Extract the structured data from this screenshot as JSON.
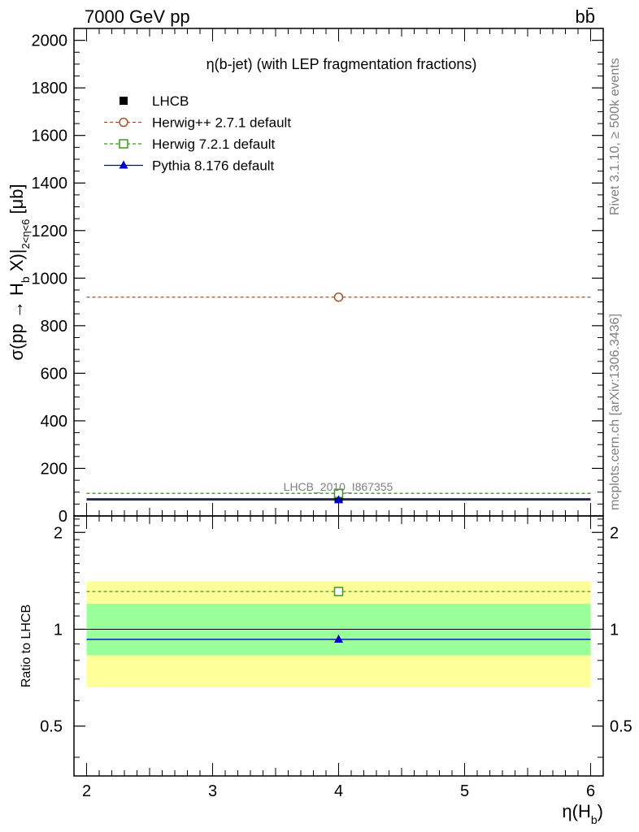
{
  "header": {
    "left": "7000 GeV pp",
    "right": "bb̄"
  },
  "side_labels": {
    "rivet": "Rivet 3.1.10, ≥ 500k events",
    "mcplots": "mcplots.cern.ch [arXiv:1306.3436]"
  },
  "chart_data": [
    {
      "type": "line",
      "panel": "main",
      "title": "η(b-jet) (with LEP fragmentation fractions)",
      "ylabel": "σ(pp → H_b X)|_{2<η<6} [μb]",
      "xlim": [
        1.9,
        6.1
      ],
      "ylim": [
        0,
        2050
      ],
      "yticks": [
        0,
        200,
        400,
        600,
        800,
        1000,
        1200,
        1400,
        1600,
        1800,
        2000
      ],
      "analysis_label": "LHCB_2010_I867355",
      "legend_position": "top-left",
      "series": [
        {
          "name": "LHCB",
          "style": "data",
          "color": "#000000",
          "marker": "filled-square",
          "x": [
            4
          ],
          "y": [
            72
          ],
          "xerr": [
            2
          ],
          "band": "none"
        },
        {
          "name": "Herwig++ 2.7.1 default",
          "style": "dashed",
          "color": "#a0522d",
          "marker": "open-circle",
          "x": [
            4
          ],
          "y": [
            920
          ],
          "xerr": [
            2
          ]
        },
        {
          "name": "Herwig 7.2.1 default",
          "style": "dashed",
          "color": "#3a9a1a",
          "marker": "open-square",
          "x": [
            4
          ],
          "y": [
            95
          ],
          "xerr": [
            2
          ]
        },
        {
          "name": "Pythia 8.176 default",
          "style": "solid",
          "color": "#0000cc",
          "marker": "filled-triangle",
          "x": [
            4
          ],
          "y": [
            67
          ],
          "xerr": [
            2
          ]
        }
      ]
    },
    {
      "type": "line",
      "panel": "ratio",
      "ylabel": "Ratio to LHCB",
      "xlabel": "η(H_b)",
      "xlim": [
        1.9,
        6.1
      ],
      "ylim": [
        0.35,
        2.25
      ],
      "yticks": [
        0.5,
        1,
        2
      ],
      "xticks": [
        2,
        3,
        4,
        5,
        6
      ],
      "bands": [
        {
          "color": "#ffff99",
          "y0": 0.66,
          "y1": 1.41,
          "x0": 2,
          "x1": 6
        },
        {
          "color": "#99ff99",
          "y0": 0.83,
          "y1": 1.2,
          "x0": 2,
          "x1": 6
        }
      ],
      "series": [
        {
          "name": "LHCB",
          "style": "solid",
          "color": "#000000",
          "x": [
            4
          ],
          "y": [
            1.0
          ],
          "xerr": [
            2
          ],
          "marker": "none"
        },
        {
          "name": "Herwig 7.2.1 default",
          "style": "dashed",
          "color": "#3a9a1a",
          "marker": "open-square",
          "x": [
            4
          ],
          "y": [
            1.31
          ],
          "xerr": [
            2
          ]
        },
        {
          "name": "Pythia 8.176 default",
          "style": "solid",
          "color": "#0000cc",
          "marker": "filled-triangle",
          "x": [
            4
          ],
          "y": [
            0.93
          ],
          "xerr": [
            2
          ]
        }
      ]
    }
  ]
}
